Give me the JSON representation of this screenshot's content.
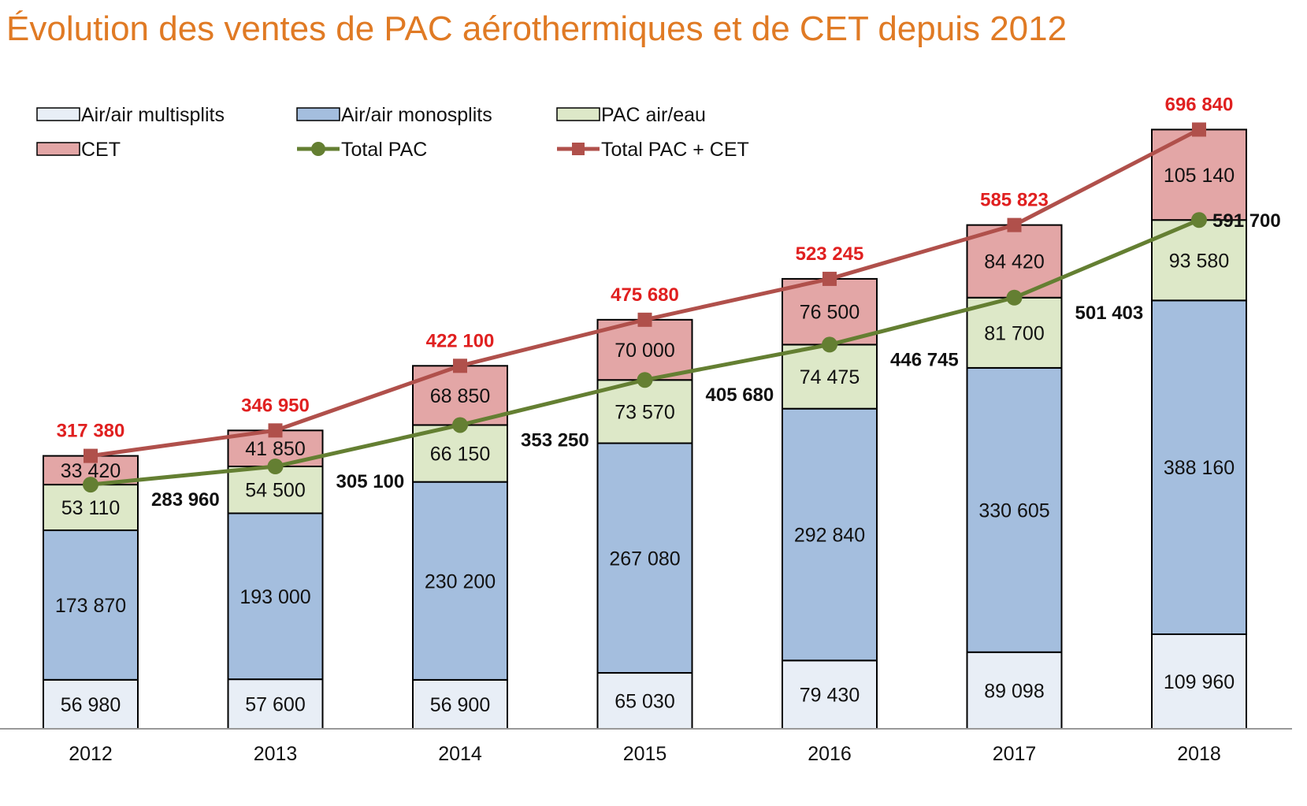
{
  "chart_data": {
    "type": "bar",
    "stacked": true,
    "title": "Évolution des ventes de PAC aérothermiques et de CET depuis 2012",
    "xlabel": "",
    "ylabel": "",
    "ylim": [
      0,
      700000
    ],
    "grid": false,
    "legend_position": "top-left",
    "categories": [
      "2012",
      "2013",
      "2014",
      "2015",
      "2016",
      "2017",
      "2018"
    ],
    "series": [
      {
        "name": "Air/air multisplits",
        "color": "#E8EEF6",
        "values": [
          56980,
          57600,
          56900,
          65030,
          79430,
          89098,
          109960
        ],
        "labels": [
          "56 980",
          "57 600",
          "56 900",
          "65 030",
          "79 430",
          "89 098",
          "109 960"
        ]
      },
      {
        "name": "Air/air monosplits",
        "color": "#A4BEDE",
        "values": [
          173870,
          193000,
          230200,
          267080,
          292840,
          330605,
          388160
        ],
        "labels": [
          "173 870",
          "193 000",
          "230 200",
          "267 080",
          "292 840",
          "330 605",
          "388 160"
        ]
      },
      {
        "name": "PAC air/eau",
        "color": "#DDE8C8",
        "values": [
          53110,
          54500,
          66150,
          73570,
          74475,
          81700,
          93580
        ],
        "labels": [
          "53 110",
          "54 500",
          "66 150",
          "73 570",
          "74 475",
          "81 700",
          "93 580"
        ]
      },
      {
        "name": "CET",
        "color": "#E3A6A6",
        "values": [
          33420,
          41850,
          68850,
          70000,
          76500,
          84420,
          105140
        ],
        "labels": [
          "33 420",
          "41 850",
          "68 850",
          "70 000",
          "76 500",
          "84 420",
          "105 140"
        ]
      }
    ],
    "lines": [
      {
        "name": "Total PAC",
        "color": "#647F32",
        "marker": "circle",
        "values": [
          283960,
          305100,
          353250,
          405680,
          446745,
          501403,
          591700
        ],
        "labels": [
          "283 960",
          "305 100",
          "353 250",
          "405 680",
          "446 745",
          "501 403",
          "591 700"
        ]
      },
      {
        "name": "Total PAC + CET",
        "color": "#B0504B",
        "marker": "square",
        "values": [
          317380,
          346950,
          422100,
          475680,
          523245,
          585823,
          696840
        ],
        "labels": [
          "317 380",
          "346 950",
          "422 100",
          "475 680",
          "523 245",
          "585 823",
          "696 840"
        ]
      }
    ]
  }
}
